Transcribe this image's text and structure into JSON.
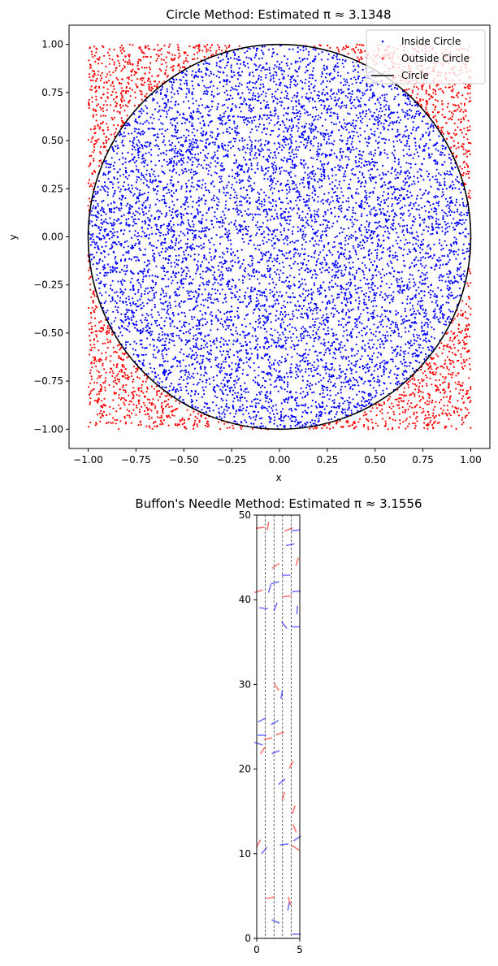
{
  "chart_data": [
    {
      "type": "scatter",
      "title": "Circle Method: Estimated π ≈ 3.1348",
      "xlabel": "x",
      "ylabel": "y",
      "xlim": [
        -1.1,
        1.1
      ],
      "ylim": [
        -1.1,
        1.1
      ],
      "xticks": [
        -1.0,
        -0.75,
        -0.5,
        -0.25,
        0.0,
        0.25,
        0.5,
        0.75,
        1.0
      ],
      "xtick_labels": [
        "−1.00",
        "−0.75",
        "−0.50",
        "−0.25",
        "0.00",
        "0.25",
        "0.50",
        "0.75",
        "1.00"
      ],
      "yticks": [
        1.0,
        0.75,
        0.5,
        0.25,
        0.0,
        -0.25,
        -0.5,
        -0.75,
        -1.0
      ],
      "ytick_labels": [
        "1.00",
        "0.75",
        "0.50",
        "0.25",
        "0.00",
        "−0.25",
        "−0.50",
        "−0.75",
        "−1.00"
      ],
      "grid": false,
      "legend_position": "top-right",
      "series": [
        {
          "name": "Inside Circle",
          "marker": "point",
          "color": "#0000ff",
          "region": "x²+y²≤1",
          "sample_count": 10000
        },
        {
          "name": "Outside Circle",
          "marker": "point",
          "color": "#ff0000",
          "region": "x²+y²>1",
          "sample_count": 10000
        },
        {
          "name": "Circle",
          "marker": "line",
          "color": "#000000",
          "radius": 1
        }
      ]
    },
    {
      "type": "scatter",
      "title": "Buffon's Needle Method: Estimated π ≈ 3.1556",
      "xlim": [
        0,
        5
      ],
      "ylim": [
        0,
        50
      ],
      "xticks": [
        0,
        5
      ],
      "xtick_labels": [
        "0",
        "5"
      ],
      "yticks": [
        0,
        10,
        20,
        30,
        40,
        50
      ],
      "ytick_labels": [
        "0",
        "10",
        "20",
        "30",
        "40",
        "50"
      ],
      "grid": false,
      "lines_x": [
        1,
        2,
        3,
        4
      ],
      "needle_length": 1,
      "colors": {
        "crossing": "#ff0000",
        "non_crossing": "#0000ff"
      },
      "needles": [
        {
          "x": 0.4,
          "y": 48.5,
          "a": 0.1,
          "c": true
        },
        {
          "x": 1.3,
          "y": 48.7,
          "a": 1.4,
          "c": true
        },
        {
          "x": 3.7,
          "y": 48.3,
          "a": 0.4,
          "c": true
        },
        {
          "x": 4.5,
          "y": 48.2,
          "a": 0.1,
          "c": false
        },
        {
          "x": 3.9,
          "y": 46.5,
          "a": 0.2,
          "c": false
        },
        {
          "x": 4.7,
          "y": 44.5,
          "a": 1.3,
          "c": true
        },
        {
          "x": 2.2,
          "y": 44.0,
          "a": 0.6,
          "c": true
        },
        {
          "x": 2.1,
          "y": 42.0,
          "a": 0.3,
          "c": false
        },
        {
          "x": 3.4,
          "y": 42.9,
          "a": 0.0,
          "c": false
        },
        {
          "x": 0.2,
          "y": 41.0,
          "a": 0.3,
          "c": true
        },
        {
          "x": 1.5,
          "y": 41.3,
          "a": 1.3,
          "c": false
        },
        {
          "x": 4.6,
          "y": 41.0,
          "a": 0.1,
          "c": false
        },
        {
          "x": 3.5,
          "y": 40.4,
          "a": 0.1,
          "c": true
        },
        {
          "x": 0.8,
          "y": 39.0,
          "a": -0.1,
          "c": false
        },
        {
          "x": 2.2,
          "y": 39.2,
          "a": 1.2,
          "c": false
        },
        {
          "x": 4.7,
          "y": 38.8,
          "a": 1.5,
          "c": false
        },
        {
          "x": 3.2,
          "y": 37.0,
          "a": -0.9,
          "c": false
        },
        {
          "x": 4.5,
          "y": 36.8,
          "a": 0.0,
          "c": false
        },
        {
          "x": 2.3,
          "y": 29.7,
          "a": -1.0,
          "c": true
        },
        {
          "x": 2.9,
          "y": 28.8,
          "a": 1.4,
          "c": false
        },
        {
          "x": 0.6,
          "y": 25.8,
          "a": 0.5,
          "c": false
        },
        {
          "x": 2.1,
          "y": 25.5,
          "a": 0.5,
          "c": false
        },
        {
          "x": 2.7,
          "y": 24.2,
          "a": 0.3,
          "c": true
        },
        {
          "x": 0.6,
          "y": 24.0,
          "a": 0.0,
          "c": false
        },
        {
          "x": 1.3,
          "y": 23.6,
          "a": 0.2,
          "c": true
        },
        {
          "x": 0.2,
          "y": 23.0,
          "a": -0.3,
          "c": false
        },
        {
          "x": 0.7,
          "y": 22.2,
          "a": 1.0,
          "c": true
        },
        {
          "x": 2.2,
          "y": 22.0,
          "a": 0.4,
          "c": false
        },
        {
          "x": 4.0,
          "y": 20.5,
          "a": 1.1,
          "c": true
        },
        {
          "x": 2.9,
          "y": 18.5,
          "a": 0.7,
          "c": false
        },
        {
          "x": 3.1,
          "y": 16.8,
          "a": 1.3,
          "c": true
        },
        {
          "x": 4.3,
          "y": 15.2,
          "a": 1.3,
          "c": true
        },
        {
          "x": 4.4,
          "y": 13.0,
          "a": -1.2,
          "c": true
        },
        {
          "x": 4.7,
          "y": 11.8,
          "a": 0.6,
          "c": false
        },
        {
          "x": 0.2,
          "y": 11.2,
          "a": 1.1,
          "c": true
        },
        {
          "x": 0.9,
          "y": 10.4,
          "a": 0.9,
          "c": false
        },
        {
          "x": 3.2,
          "y": 11.1,
          "a": 0.1,
          "c": false
        },
        {
          "x": 4.5,
          "y": 10.7,
          "a": -0.6,
          "c": true
        },
        {
          "x": 1.6,
          "y": 4.8,
          "a": 0.2,
          "c": true
        },
        {
          "x": 3.7,
          "y": 3.8,
          "a": 1.4,
          "c": false
        },
        {
          "x": 3.8,
          "y": 4.4,
          "a": -1.3,
          "c": true
        },
        {
          "x": 2.2,
          "y": 2.0,
          "a": -0.4,
          "c": false
        },
        {
          "x": 4.6,
          "y": 0.5,
          "a": 0.0,
          "c": false
        }
      ]
    }
  ]
}
